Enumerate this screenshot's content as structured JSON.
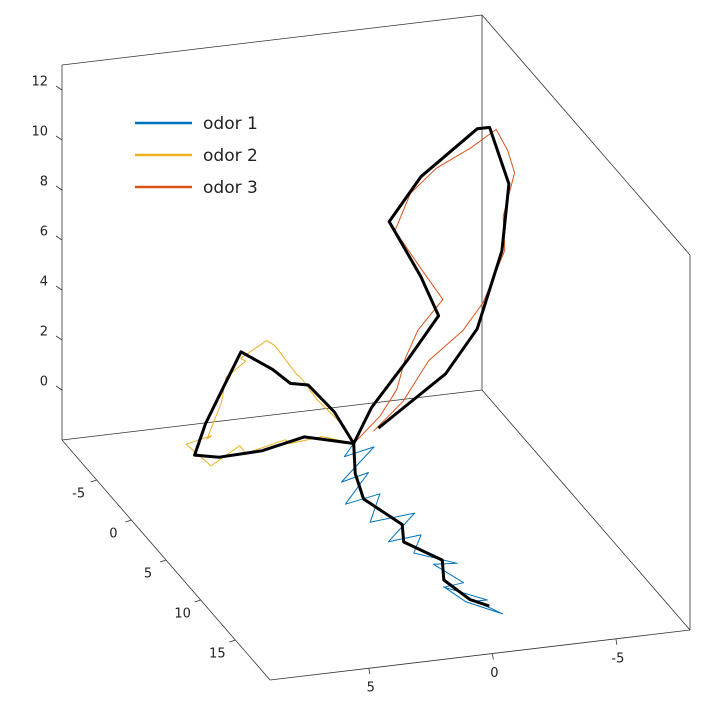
{
  "chart_data": {
    "type": "line3d",
    "xlim": [
      -10,
      20
    ],
    "xticks": [
      -5,
      0,
      5,
      10,
      15
    ],
    "ylim": [
      -8,
      9
    ],
    "yticks": [
      5,
      0,
      -5
    ],
    "ydir": "reverse",
    "zlim": [
      -2,
      13
    ],
    "zticks": [
      0,
      2,
      4,
      6,
      8,
      10,
      12
    ],
    "grid": false,
    "box": true,
    "legend": "northwest",
    "mean_color": "#000000",
    "series": [
      {
        "name": "odor 1",
        "color": "#0072BD",
        "x": [
          0,
          0.8,
          1.5,
          2.5,
          3.2,
          4.5,
          5.2,
          6.3,
          7,
          8.2,
          9,
          10.1,
          11,
          12.2,
          13,
          14.1,
          15,
          15.8,
          16.5,
          15.5,
          14
        ],
        "y": [
          0,
          0.6,
          -0.4,
          1.2,
          0.3,
          1.6,
          0.4,
          1.1,
          -0.5,
          0.9,
          -0.2,
          0.4,
          -1.1,
          0.2,
          -0.8,
          0.3,
          -1.2,
          -0.5,
          -1.4,
          -0.2,
          0.3
        ],
        "z": [
          0,
          -0.2,
          0.3,
          -0.6,
          -0.1,
          -0.8,
          -0.3,
          -1,
          -0.6,
          -1.2,
          -0.8,
          -1.1,
          -1.4,
          -0.9,
          -1.5,
          -1.2,
          -1.6,
          -1.3,
          -1.7,
          -1.4,
          -1.2
        ],
        "mean": {
          "x": [
            0,
            2,
            5,
            7,
            9,
            11,
            13,
            15,
            16
          ],
          "y": [
            0,
            0.5,
            1,
            0,
            0.5,
            -0.5,
            0,
            -0.5,
            -1
          ],
          "z": [
            0,
            -0.5,
            -0.5,
            -1,
            -1,
            -1.2,
            -1.3,
            -1.5,
            -1.5
          ]
        }
      },
      {
        "name": "odor 2",
        "color": "#EDB120",
        "x": [
          0,
          0.5,
          -0.3,
          1.2,
          0.8,
          2.1,
          2.6,
          1.5,
          2.3,
          0.6,
          -0.2,
          -1.3,
          -0.6,
          -2.4,
          -1.5,
          -2.8,
          -1.9,
          -3.2,
          -2.1,
          -0.8,
          0
        ],
        "y": [
          0,
          1.4,
          2.5,
          3.1,
          4.6,
          5.2,
          6.5,
          7.2,
          6.4,
          6.1,
          5.3,
          4.8,
          4.2,
          3.9,
          3.1,
          2.4,
          1.8,
          1.2,
          0.9,
          0.3,
          0
        ],
        "z": [
          0,
          0.6,
          0.2,
          0.9,
          0.4,
          1.2,
          0.7,
          1.3,
          1.8,
          1.1,
          2.2,
          2.8,
          3.6,
          3.1,
          4,
          3.3,
          2.4,
          1.7,
          1.2,
          0.6,
          0
        ],
        "mean": {
          "x": [
            0,
            0,
            1,
            2,
            2,
            0,
            -1,
            -2,
            -1,
            -2,
            -3,
            -1,
            0
          ],
          "y": [
            0,
            2,
            4,
            6,
            7,
            6,
            5,
            4,
            3,
            2,
            1,
            0.5,
            0
          ],
          "z": [
            0,
            0.5,
            0.5,
            0.8,
            1,
            1.5,
            2.5,
            3.5,
            3,
            2,
            1.5,
            1,
            0
          ]
        }
      },
      {
        "name": "odor 3",
        "color": "#D95319",
        "x": [
          0,
          -0.8,
          -1.6,
          -2.5,
          -3.2,
          -2.1,
          -1.4,
          -2.6,
          -1.8,
          -0.9,
          -0.2,
          0.6,
          1.2,
          0.4,
          0.9,
          -0.3,
          0.5,
          -0.6,
          -1.3,
          -0.4,
          0
        ],
        "y": [
          0,
          -1.3,
          -2.2,
          -2.8,
          -3.5,
          -4.2,
          -3.1,
          -2.4,
          -2.8,
          -3.6,
          -4.8,
          -5.6,
          -5.9,
          -6.4,
          -5.8,
          -6.2,
          -5.1,
          -4.6,
          -3.4,
          -2.1,
          -0.8
        ],
        "z": [
          0,
          0.7,
          1.4,
          2.3,
          3.1,
          4.6,
          6.2,
          7.4,
          9.1,
          10.3,
          11.2,
          12.1,
          11.4,
          10.2,
          8.7,
          6.9,
          5.2,
          3.8,
          2.5,
          1.3,
          0.4
        ],
        "mean": {
          "x": [
            0,
            -1,
            -2,
            -3,
            -2,
            -1,
            -2,
            -1,
            0,
            0,
            1,
            0,
            0,
            -1,
            0
          ],
          "y": [
            0,
            -1,
            -2,
            -3,
            -4,
            -3,
            -2,
            -3,
            -5,
            -5.5,
            -6,
            -6,
            -5,
            -4,
            -1
          ],
          "z": [
            0,
            1,
            1.5,
            2,
            4,
            6,
            8,
            10,
            12,
            12,
            10,
            7,
            4,
            2,
            0.5
          ]
        }
      }
    ]
  }
}
